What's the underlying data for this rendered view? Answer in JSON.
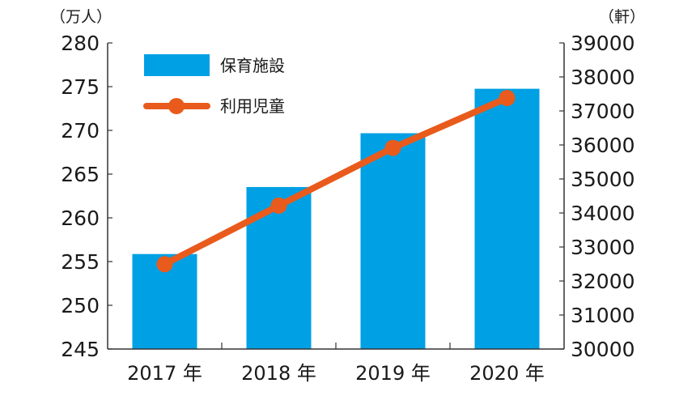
{
  "chart_data": {
    "type": "bar+line",
    "categories": [
      "2017 年",
      "2018 年",
      "2019 年",
      "2020 年"
    ],
    "series": [
      {
        "name": "保育施設",
        "type": "bar",
        "axis": "right",
        "color": "#00a0e4",
        "values": [
          32793,
          34763,
          36345,
          37652
        ]
      },
      {
        "name": "利用児童",
        "type": "line",
        "axis": "left",
        "color": "#e95b1c",
        "values": [
          254.7,
          261.4,
          268.0,
          273.7
        ]
      }
    ],
    "left_axis": {
      "unit_label": "（万人）",
      "ylim": [
        245,
        280
      ],
      "ticks": [
        "245",
        "250",
        "255",
        "260",
        "265",
        "270",
        "275",
        "280"
      ]
    },
    "right_axis": {
      "unit_label": "（軒）",
      "ylim": [
        30000,
        39000
      ],
      "ticks": [
        "30000",
        "31000",
        "32000",
        "33000",
        "34000",
        "35000",
        "36000",
        "37000",
        "38000",
        "39000"
      ]
    },
    "grid": false,
    "legend": "top-left"
  }
}
